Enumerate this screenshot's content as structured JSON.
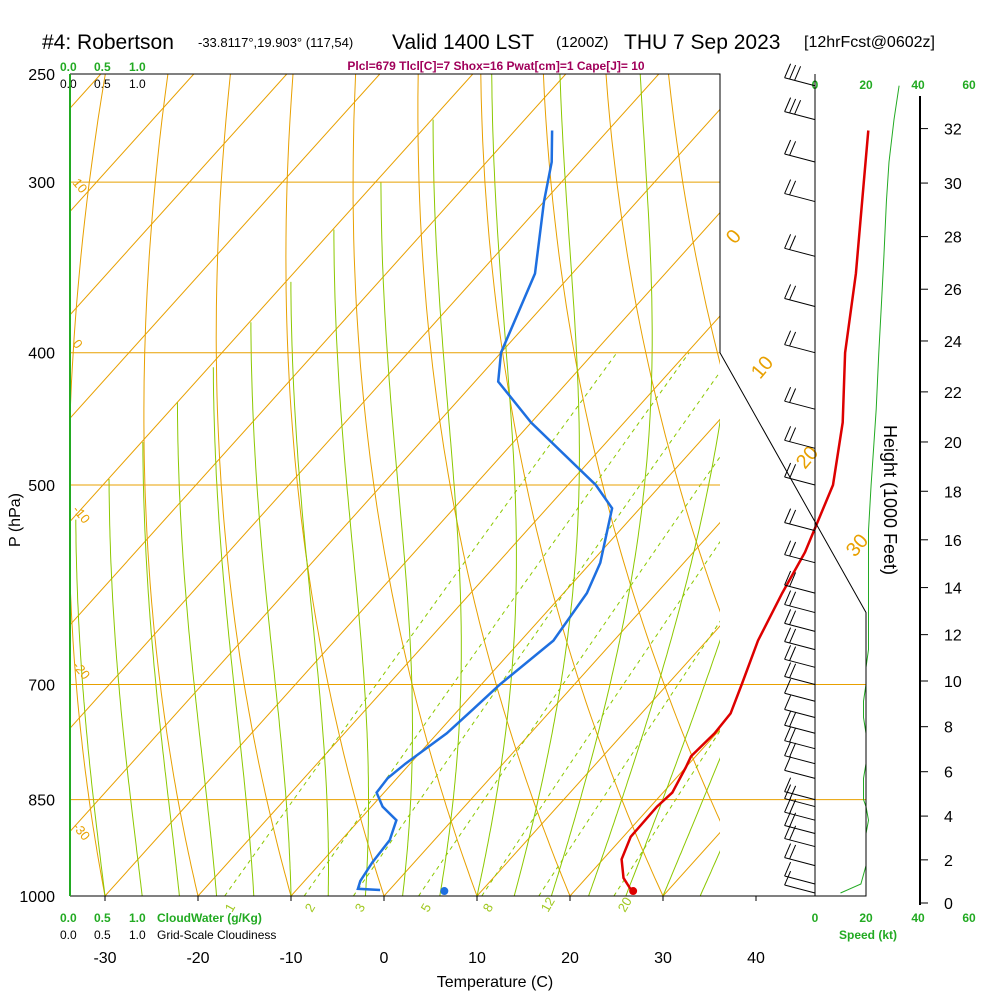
{
  "header": {
    "station": "#4: Robertson",
    "coords": "-33.8117°,19.903° (117,54)",
    "valid": "Valid 1400 LST",
    "zulu": "(1200Z)",
    "date": "THU 7 Sep 2023",
    "forecast": "[12hrFcst@0602z]"
  },
  "indices": "Plcl=679 Tlcl[C]=7 Shox=16 Pwat[cm]=1 Cape[J]= 10",
  "top_scales": {
    "cloudwater_ticks": [
      "0.0",
      "0.5",
      "1.0"
    ],
    "cloudiness_ticks": [
      "0.0",
      "0.5",
      "1.0"
    ],
    "speed_ticks": [
      "0",
      "20",
      "40",
      "60"
    ]
  },
  "bottom_scales": {
    "cloudwater_ticks": [
      "0.0",
      "0.5",
      "1.0"
    ],
    "cloudwater_label": "CloudWater (g/Kg)",
    "cloudiness_ticks": [
      "0.0",
      "0.5",
      "1.0"
    ],
    "cloudiness_label": "Grid-Scale Cloudiness",
    "speed_ticks": [
      "0",
      "20",
      "40",
      "60"
    ],
    "speed_label": "Speed (kt)"
  },
  "colors": {
    "temperature": "#dd0000",
    "dewpoint": "#1e6fe0",
    "isotherm": "#e8a000",
    "dry_adiabat": "#e8a000",
    "moist_adiabat": "#8cc800",
    "mixing_ratio": "#8cc800",
    "speed": "#22aa22"
  },
  "chart_data": {
    "type": "line",
    "subtype": "skew-T log-P sounding",
    "xlabel": "Temperature (C)",
    "ylabel": "P (hPa)",
    "y2label": "Height (1000 Feet)",
    "xlim": [
      -35,
      35
    ],
    "ylim": [
      1000,
      250
    ],
    "y_scale": "log",
    "x_ticks": [
      -30,
      -20,
      -10,
      0,
      10,
      20,
      30,
      40
    ],
    "p_ticks": [
      250,
      300,
      400,
      500,
      700,
      850,
      1000
    ],
    "height_ticks": [
      0,
      2,
      4,
      6,
      8,
      10,
      12,
      14,
      16,
      18,
      20,
      22,
      24,
      26,
      28,
      30,
      32
    ],
    "isotherm_labels": [
      "10",
      "0",
      "-10",
      "-20",
      "-30"
    ],
    "dry_adiabat_labels": [
      "0",
      "10",
      "20",
      "30"
    ],
    "mixing_ratio_labels": [
      "1",
      "2",
      "3",
      "5",
      "8",
      "12",
      "20"
    ],
    "series": [
      {
        "name": "Temperature",
        "pressure": [
          995,
          985,
          970,
          940,
          905,
          860,
          840,
          805,
          790,
          760,
          735,
          700,
          650,
          600,
          560,
          500,
          450,
          400,
          350,
          300,
          275
        ],
        "values": [
          26.5,
          25.5,
          24,
          22,
          20.8,
          20.7,
          21,
          20,
          19.5,
          19.8,
          19.6,
          18,
          15.5,
          13.5,
          12,
          8.5,
          3.5,
          -3,
          -9.5,
          -17.5,
          -22
        ]
      },
      {
        "name": "Dewpoint",
        "pressure": [
          990,
          988,
          975,
          945,
          910,
          880,
          860,
          840,
          820,
          800,
          760,
          730,
          700,
          650,
          600,
          570,
          520,
          500,
          450,
          420,
          400,
          350,
          310,
          290,
          275
        ],
        "values": [
          -1,
          -3.5,
          -4,
          -4.5,
          -4.8,
          -6,
          -8.8,
          -10.8,
          -11,
          -10.5,
          -9,
          -8.5,
          -8,
          -6.5,
          -7.5,
          -9,
          -13,
          -17,
          -30,
          -37.5,
          -40,
          -44,
          -50,
          -53,
          -56
        ]
      }
    ],
    "surface_points": [
      {
        "name": "Temperature",
        "pressure": 995,
        "value": 26.5
      },
      {
        "name": "Dewpoint",
        "pressure": 995,
        "value": 6.2
      }
    ],
    "wind_speed_kt": {
      "pressure": [
        995,
        980,
        950,
        920,
        900,
        880,
        860,
        850,
        820,
        800,
        780,
        760,
        740,
        720,
        700,
        680,
        660,
        640,
        620,
        600,
        570,
        540,
        500,
        470,
        440,
        400,
        370,
        340,
        310,
        290,
        270,
        255
      ],
      "values": [
        10,
        18,
        20,
        20,
        20,
        21,
        20,
        19,
        19,
        20,
        20,
        20,
        19,
        19,
        20,
        20,
        21,
        21,
        21,
        21,
        21,
        21,
        22,
        23,
        24,
        25,
        26,
        27,
        28,
        29,
        31,
        33
      ]
    }
  }
}
